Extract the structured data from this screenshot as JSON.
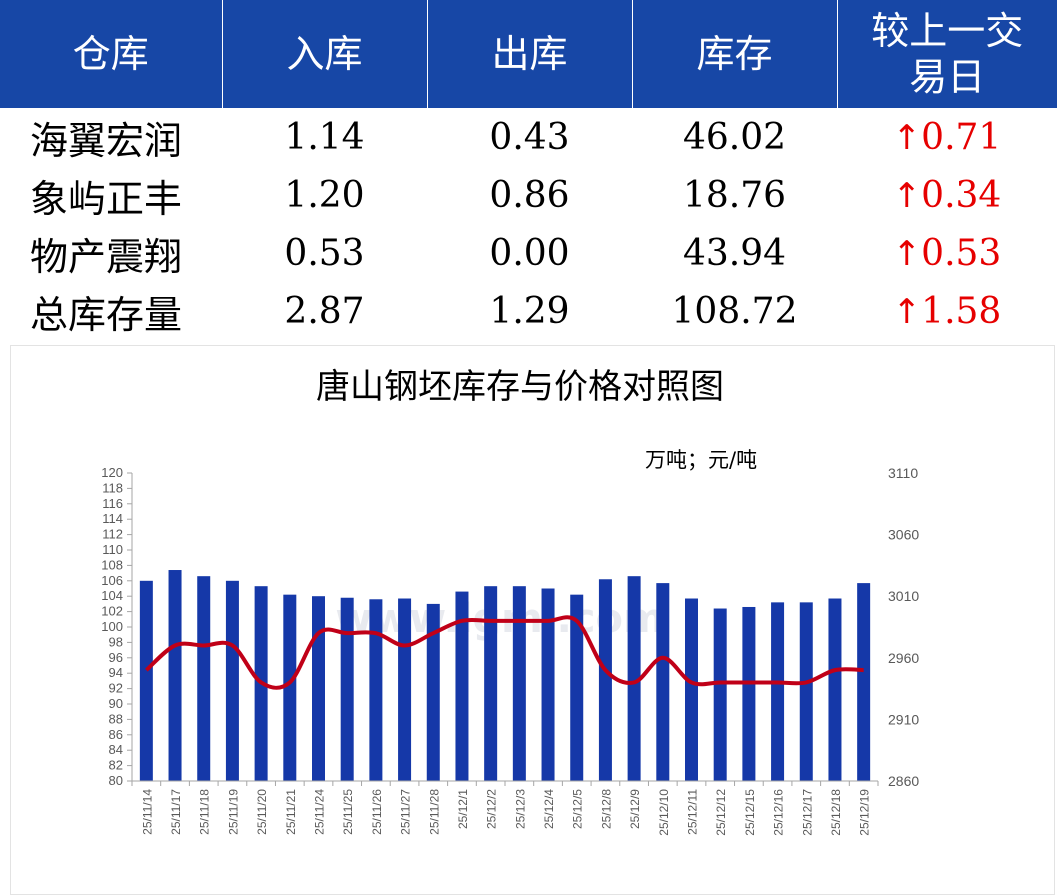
{
  "table": {
    "headers": [
      {
        "line1": "仓库",
        "line2": ""
      },
      {
        "line1": "入库",
        "line2": ""
      },
      {
        "line1": "出库",
        "line2": ""
      },
      {
        "line1": "库存",
        "line2": ""
      },
      {
        "line1": "较上一交",
        "line2": "易日"
      }
    ],
    "arrow_glyph": "↑",
    "rows": [
      {
        "warehouse": "海翼宏润",
        "inbound": "1.14",
        "outbound": "0.43",
        "stock": "46.02",
        "change": "0.71"
      },
      {
        "warehouse": "象屿正丰",
        "inbound": "1.20",
        "outbound": "0.86",
        "stock": "18.76",
        "change": "0.34"
      },
      {
        "warehouse": "物产震翔",
        "inbound": "0.53",
        "outbound": "0.00",
        "stock": "43.94",
        "change": "0.53"
      },
      {
        "warehouse": "总库存量",
        "inbound": "2.87",
        "outbound": "1.29",
        "stock": "108.72",
        "change": "1.58"
      }
    ]
  },
  "colors": {
    "header_bg": "#1747a6",
    "bar": "#1538a8",
    "line": "#c00018",
    "up": "#e60000"
  },
  "watermark": "www.lgmi.com",
  "chart_data": {
    "type": "bar",
    "title": "唐山钢坯库存与价格对照图",
    "unit_label": "万吨；元/吨",
    "categories": [
      "25/11/14",
      "25/11/17",
      "25/11/18",
      "25/11/19",
      "25/11/20",
      "25/11/21",
      "25/11/24",
      "25/11/25",
      "25/11/26",
      "25/11/27",
      "25/11/28",
      "25/12/1",
      "25/12/2",
      "25/12/3",
      "25/12/4",
      "25/12/5",
      "25/12/8",
      "25/12/9",
      "25/12/10",
      "25/12/11",
      "25/12/12",
      "25/12/15",
      "25/12/16",
      "25/12/17",
      "25/12/18",
      "25/12/19"
    ],
    "series": [
      {
        "type": "bar",
        "axis": "left",
        "values": [
          106.0,
          107.4,
          106.6,
          106.0,
          105.3,
          104.2,
          104.0,
          103.8,
          103.6,
          103.7,
          103.0,
          104.6,
          105.3,
          105.3,
          105.0,
          104.2,
          106.2,
          106.6,
          105.7,
          103.7,
          102.4,
          102.6,
          103.2,
          103.2,
          103.7,
          105.7
        ]
      },
      {
        "type": "line",
        "axis": "right",
        "values": [
          2950,
          2970,
          2970,
          2970,
          2940,
          2940,
          2980,
          2980,
          2980,
          2970,
          2980,
          2990,
          2990,
          2990,
          2990,
          2990,
          2950,
          2940,
          2960,
          2940,
          2940,
          2940,
          2940,
          2940,
          2950,
          2950
        ]
      }
    ],
    "y_left": {
      "min": 80,
      "max": 120,
      "step": 2
    },
    "y_right": {
      "min": 2860,
      "max": 3110,
      "ticks": [
        2860,
        2910,
        2960,
        3010,
        3060,
        3110
      ]
    },
    "grid": false,
    "legend": "none"
  }
}
